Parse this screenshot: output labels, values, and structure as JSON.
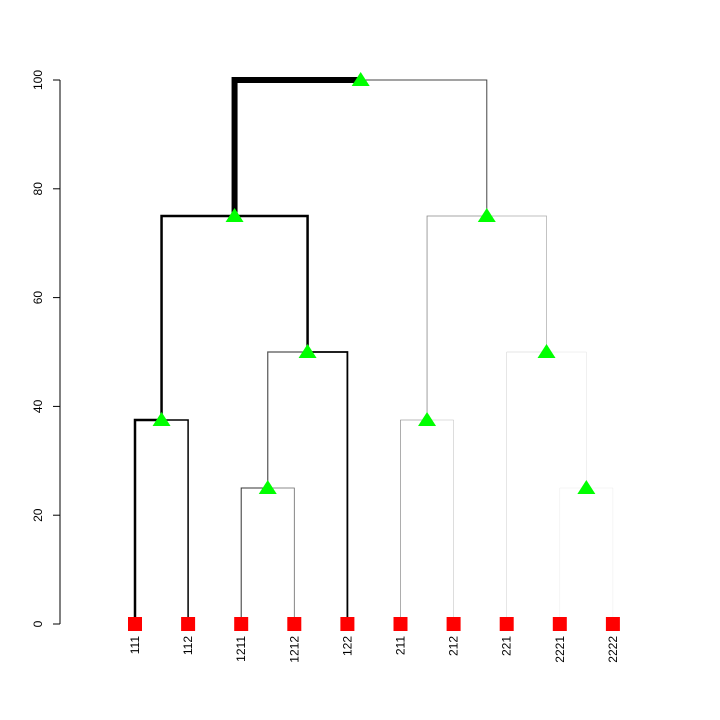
{
  "chart_data": {
    "type": "dendrogram",
    "title": "",
    "xlabel": "",
    "ylabel": "",
    "ylim": [
      0,
      100
    ],
    "y_ticks": [
      0,
      20,
      40,
      60,
      80,
      100
    ],
    "y_tick_labels": [
      "0",
      "20",
      "40",
      "60",
      "80",
      "100"
    ],
    "leaves": [
      "111",
      "112",
      "1211",
      "1212",
      "122",
      "211",
      "212",
      "221",
      "2221",
      "2222"
    ],
    "leaf_marker_color": "#ff0000",
    "node_marker_color": "#00ff00",
    "nodes": [
      {
        "id": "n11",
        "height": 37.5,
        "left": "111",
        "right": "112",
        "edge_weight": 2.5,
        "edge_color": "#000000"
      },
      {
        "id": "n121",
        "height": 25,
        "left": "1211",
        "right": "1212",
        "edge_weight": 1.2,
        "edge_color": "#555555"
      },
      {
        "id": "n12",
        "height": 50,
        "left": "n121",
        "right": "122",
        "edge_weight": 2.5,
        "edge_color": "#000000"
      },
      {
        "id": "n1",
        "height": 75,
        "left": "n11",
        "right": "n12",
        "edge_weight": 6,
        "edge_color": "#000000"
      },
      {
        "id": "n21",
        "height": 37.5,
        "left": "211",
        "right": "212",
        "edge_weight": 0.8,
        "edge_color": "#888888"
      },
      {
        "id": "n222",
        "height": 25,
        "left": "2221",
        "right": "2222",
        "edge_weight": 0.5,
        "edge_color": "#e0e0e0"
      },
      {
        "id": "n22",
        "height": 50,
        "left": "221",
        "right": "n222",
        "edge_weight": 0.7,
        "edge_color": "#aaaaaa"
      },
      {
        "id": "n2",
        "height": 75,
        "left": "n21",
        "right": "n22",
        "edge_weight": 1,
        "edge_color": "#444444"
      },
      {
        "id": "root",
        "height": 100,
        "left": "n1",
        "right": "n2",
        "edge_weight": null,
        "edge_color": null
      }
    ],
    "edge_styles": {
      "111": {
        "w": 2.5,
        "c": "#000000"
      },
      "112": {
        "w": 1.5,
        "c": "#000000"
      },
      "1211": {
        "w": 1,
        "c": "#333333"
      },
      "1212": {
        "w": 0.8,
        "c": "#666666"
      },
      "122": {
        "w": 1.8,
        "c": "#000000"
      },
      "211": {
        "w": 0.6,
        "c": "#777777"
      },
      "212": {
        "w": 0.5,
        "c": "#bbbbbb"
      },
      "221": {
        "w": 0.5,
        "c": "#cccccc"
      },
      "2221": {
        "w": 0.4,
        "c": "#e6e6e6"
      },
      "2222": {
        "w": 0.4,
        "c": "#e6e6e6"
      }
    }
  }
}
